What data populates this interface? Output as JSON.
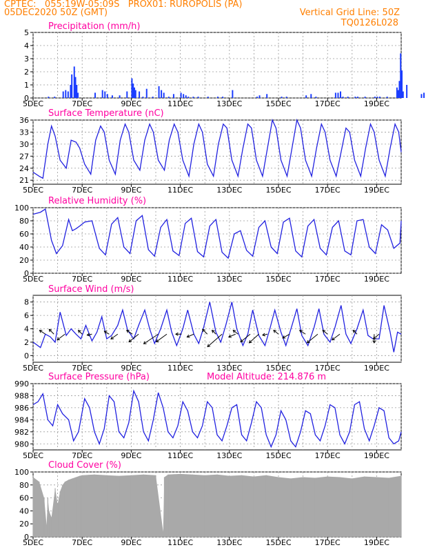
{
  "header": {
    "line1": "CPTEC:   055:19W-05:09S   PROX01: RUROPOLIS (PA)",
    "line2": "05DEC2020 50Z (GMT)",
    "vgrid": "Vertical Grid Line: 50Z",
    "code": "TQ0126L028"
  },
  "x_ticks": [
    "5DEC",
    "7DEC",
    "9DEC",
    "11DEC",
    "13DEC",
    "15DEC",
    "17DEC",
    "19DEC"
  ],
  "panels": {
    "precip": {
      "title": "Precipitation   (mm/h)"
    },
    "temp": {
      "title": "Surface Temperature  (nC)"
    },
    "rh": {
      "title": "Relative Humidity  (%)"
    },
    "wind": {
      "title": "Surface Wind   (m/s)"
    },
    "press": {
      "title": "Surface Pressure  (hPa)",
      "altitude": "Model Altitude: 214.876  m"
    },
    "cloud": {
      "title": "Cloud Cover  (%)"
    }
  },
  "colors": {
    "line": "#2020e0",
    "bar": "#1a3cff",
    "cloud": "#a9a9a9",
    "title": "#ff00a0",
    "header": "#ff7f00"
  },
  "chart_data": [
    {
      "type": "bar",
      "name": "precip",
      "title": "Precipitation (mm/h)",
      "ylim": [
        0,
        5
      ],
      "yticks": [
        0,
        1,
        2,
        3,
        4,
        5
      ],
      "x_days": [
        0.6,
        0.85,
        1.2,
        1.3,
        1.4,
        1.5,
        1.55,
        1.65,
        1.7,
        1.75,
        1.8,
        2.5,
        2.8,
        2.9,
        3.0,
        3.2,
        3.5,
        3.8,
        4.0,
        4.05,
        4.1,
        4.15,
        4.3,
        4.45,
        4.6,
        4.85,
        5.1,
        5.2,
        5.3,
        5.5,
        5.7,
        6.0,
        6.1,
        6.2,
        6.3,
        6.5,
        6.7,
        7.1,
        7.5,
        7.7,
        8.1,
        9.1,
        9.2,
        9.5,
        10.1,
        10.3,
        11.1,
        11.3,
        11.5,
        12.3,
        12.4,
        12.5,
        12.6,
        12.8,
        13.1,
        13.2,
        13.5,
        13.9,
        14.0,
        14.1,
        14.4,
        14.8,
        14.85,
        14.9,
        14.95,
        15.0,
        15.05,
        15.2,
        15.8,
        15.9
      ],
      "values": [
        0.1,
        0.1,
        0.5,
        0.6,
        0.5,
        1.0,
        1.8,
        2.4,
        1.6,
        1.0,
        0.4,
        0.4,
        0.6,
        0.5,
        0.3,
        0.2,
        0.2,
        0.5,
        1.5,
        1.1,
        0.8,
        0.6,
        0.5,
        0.1,
        0.7,
        0.1,
        0.9,
        0.6,
        0.4,
        0.1,
        0.3,
        0.4,
        0.3,
        0.2,
        0.1,
        0.1,
        0.1,
        0.1,
        0.1,
        0.1,
        0.6,
        0.1,
        0.2,
        0.3,
        0.1,
        0.1,
        0.2,
        0.3,
        0.1,
        0.4,
        0.4,
        0.5,
        0.1,
        0.1,
        0.1,
        0.1,
        0.1,
        0.1,
        0.1,
        0.1,
        0.1,
        0.8,
        0.6,
        1.3,
        3.4,
        2.1,
        0.5,
        1.0,
        0.3,
        0.4
      ]
    },
    {
      "type": "line",
      "name": "temp",
      "title": "Surface Temperature (nC)",
      "ylim": [
        20,
        36
      ],
      "yticks": [
        21,
        24,
        27,
        30,
        33,
        36
      ],
      "x_days": [
        0,
        0.25,
        0.4,
        0.6,
        0.75,
        0.9,
        1.1,
        1.35,
        1.55,
        1.75,
        1.9,
        2.1,
        2.35,
        2.55,
        2.75,
        2.9,
        3.1,
        3.35,
        3.55,
        3.75,
        3.9,
        4.1,
        4.35,
        4.55,
        4.75,
        4.9,
        5.1,
        5.35,
        5.55,
        5.75,
        5.9,
        6.1,
        6.35,
        6.55,
        6.75,
        6.9,
        7.1,
        7.35,
        7.55,
        7.75,
        7.9,
        8.1,
        8.35,
        8.55,
        8.75,
        8.9,
        9.1,
        9.35,
        9.55,
        9.75,
        9.9,
        10.1,
        10.35,
        10.55,
        10.75,
        10.9,
        11.1,
        11.35,
        11.55,
        11.75,
        11.9,
        12.1,
        12.35,
        12.55,
        12.75,
        12.9,
        13.1,
        13.35,
        13.55,
        13.75,
        13.9,
        14.1,
        14.35,
        14.55,
        14.75,
        14.9,
        15
      ],
      "values": [
        23,
        22,
        21.5,
        30,
        34.5,
        32,
        26,
        24,
        31,
        30.5,
        29,
        25,
        22.5,
        31,
        34.5,
        33,
        26,
        22.5,
        31,
        35,
        33,
        26,
        23.5,
        31,
        35,
        33,
        26,
        23.5,
        31,
        35,
        33,
        26,
        22,
        30,
        35,
        33,
        25,
        22,
        30,
        35,
        34,
        26,
        22,
        29,
        35,
        34,
        26,
        22,
        29,
        36,
        34,
        26,
        22,
        29,
        36,
        34,
        26,
        22,
        29,
        35,
        33,
        26,
        22,
        28,
        34,
        33,
        26,
        22,
        29,
        35,
        33,
        26,
        22,
        29,
        35,
        33,
        28
      ]
    },
    {
      "type": "line",
      "name": "rh",
      "title": "Relative Humidity (%)",
      "ylim": [
        0,
        100
      ],
      "yticks": [
        0,
        20,
        40,
        60,
        80,
        100
      ],
      "x_days": [
        0,
        0.3,
        0.5,
        0.75,
        0.95,
        1.2,
        1.45,
        1.6,
        1.75,
        1.9,
        2.1,
        2.4,
        2.7,
        2.95,
        3.2,
        3.45,
        3.7,
        3.95,
        4.2,
        4.45,
        4.7,
        4.95,
        5.2,
        5.45,
        5.7,
        5.95,
        6.2,
        6.45,
        6.7,
        6.95,
        7.2,
        7.45,
        7.7,
        7.95,
        8.2,
        8.45,
        8.7,
        8.95,
        9.2,
        9.45,
        9.7,
        9.95,
        10.2,
        10.45,
        10.7,
        10.95,
        11.2,
        11.45,
        11.7,
        11.95,
        12.2,
        12.45,
        12.7,
        12.95,
        13.2,
        13.45,
        13.7,
        13.95,
        14.2,
        14.45,
        14.7,
        14.95,
        15
      ],
      "values": [
        90,
        93,
        98,
        50,
        30,
        42,
        82,
        65,
        68,
        72,
        78,
        80,
        38,
        28,
        75,
        85,
        40,
        30,
        80,
        88,
        36,
        26,
        70,
        82,
        34,
        27,
        76,
        84,
        33,
        25,
        72,
        82,
        32,
        23,
        60,
        65,
        35,
        26,
        70,
        80,
        40,
        30,
        78,
        84,
        34,
        25,
        72,
        82,
        38,
        28,
        70,
        80,
        34,
        28,
        80,
        82,
        40,
        30,
        74,
        66,
        38,
        46,
        80
      ]
    },
    {
      "type": "line",
      "name": "wind",
      "title": "Surface Wind (m/s)",
      "ylim": [
        -1,
        9
      ],
      "yticks": [
        0,
        2,
        4,
        6,
        8
      ],
      "x_days": [
        0,
        0.3,
        0.5,
        0.7,
        0.9,
        1.1,
        1.35,
        1.55,
        1.75,
        1.95,
        2.15,
        2.4,
        2.6,
        2.8,
        3.0,
        3.2,
        3.45,
        3.65,
        3.85,
        4.1,
        4.3,
        4.55,
        4.75,
        4.95,
        5.2,
        5.45,
        5.65,
        5.85,
        6.1,
        6.3,
        6.55,
        6.75,
        6.95,
        7.2,
        7.45,
        7.65,
        7.85,
        8.1,
        8.3,
        8.55,
        8.75,
        8.95,
        9.2,
        9.45,
        9.65,
        9.85,
        10.1,
        10.3,
        10.55,
        10.75,
        10.95,
        11.2,
        11.45,
        11.65,
        11.85,
        12.1,
        12.3,
        12.55,
        12.75,
        12.95,
        13.2,
        13.45,
        13.65,
        13.85,
        14.1,
        14.3,
        14.55,
        14.7,
        14.85,
        15
      ],
      "values": [
        2,
        1.2,
        3.2,
        2.8,
        2.0,
        6.5,
        3.0,
        4.0,
        3.2,
        2.5,
        4.5,
        2.2,
        3.5,
        5.8,
        2.5,
        3.0,
        4.5,
        6.8,
        3.8,
        2.5,
        4.5,
        6.8,
        4.0,
        1.8,
        4.0,
        6.8,
        3.5,
        1.5,
        4.0,
        6.8,
        3.2,
        1.8,
        4.2,
        8.0,
        3.5,
        2.0,
        4.5,
        8.0,
        4.0,
        1.5,
        3.2,
        6.8,
        3.0,
        1.5,
        4.0,
        6.8,
        3.5,
        1.5,
        4.5,
        7.0,
        3.0,
        1.5,
        4.2,
        7.0,
        3.2,
        2.0,
        4.2,
        7.5,
        3.2,
        1.8,
        4.0,
        6.8,
        3.0,
        2.5,
        2.5,
        7.5,
        3.5,
        0.5,
        3.5,
        3.2
      ],
      "vectors": [
        {
          "day": 0.5,
          "u": -0.6,
          "v": 0.4
        },
        {
          "day": 0.85,
          "u": -0.5,
          "v": 0.5
        },
        {
          "day": 1.3,
          "u": -0.8,
          "v": -0.6
        },
        {
          "day": 2.0,
          "u": -0.4,
          "v": 0.4
        },
        {
          "day": 2.4,
          "u": -0.5,
          "v": -0.1
        },
        {
          "day": 3.1,
          "u": -0.5,
          "v": 0.3
        },
        {
          "day": 3.45,
          "u": -0.7,
          "v": -0.5
        },
        {
          "day": 4.05,
          "u": -0.6,
          "v": 0.4
        },
        {
          "day": 4.3,
          "u": -1.0,
          "v": -0.8
        },
        {
          "day": 5.1,
          "u": -1.5,
          "v": -1.0
        },
        {
          "day": 5.45,
          "u": -1.1,
          "v": -0.8
        },
        {
          "day": 6.05,
          "u": -0.6,
          "v": 0.0
        },
        {
          "day": 6.55,
          "u": -0.7,
          "v": -0.3
        },
        {
          "day": 7.1,
          "u": -0.5,
          "v": 0.5
        },
        {
          "day": 7.45,
          "u": -0.4,
          "v": 0.4
        },
        {
          "day": 7.7,
          "u": -1.5,
          "v": -1.3
        },
        {
          "day": 8.25,
          "u": -0.7,
          "v": -0.3
        },
        {
          "day": 8.35,
          "u": -0.5,
          "v": 0.4
        },
        {
          "day": 8.85,
          "u": -1.0,
          "v": -0.8
        },
        {
          "day": 9.2,
          "u": -1.0,
          "v": -0.9
        },
        {
          "day": 9.55,
          "u": -0.5,
          "v": -0.1
        },
        {
          "day": 10.0,
          "u": -0.5,
          "v": 0.4
        },
        {
          "day": 10.45,
          "u": -0.7,
          "v": -0.4
        },
        {
          "day": 11.1,
          "u": -0.6,
          "v": 0.4
        },
        {
          "day": 11.6,
          "u": -1.1,
          "v": -0.9
        },
        {
          "day": 12.0,
          "u": -0.5,
          "v": 0.4
        },
        {
          "day": 12.5,
          "u": -0.8,
          "v": -0.6
        },
        {
          "day": 13.2,
          "u": -0.4,
          "v": 0.4
        },
        {
          "day": 13.9,
          "u": 0.0,
          "v": -0.9
        },
        {
          "day": 14.1,
          "u": -0.6,
          "v": -0.5
        }
      ]
    },
    {
      "type": "line",
      "name": "press",
      "title": "Surface Pressure (hPa)",
      "ylim": [
        979,
        990
      ],
      "yticks": [
        980,
        982,
        984,
        986,
        988,
        990
      ],
      "x_days": [
        0,
        0.2,
        0.4,
        0.6,
        0.8,
        1.0,
        1.2,
        1.45,
        1.65,
        1.85,
        2.1,
        2.3,
        2.5,
        2.7,
        2.9,
        3.1,
        3.3,
        3.5,
        3.7,
        3.9,
        4.1,
        4.3,
        4.5,
        4.7,
        4.9,
        5.1,
        5.3,
        5.5,
        5.7,
        5.9,
        6.1,
        6.3,
        6.5,
        6.7,
        6.9,
        7.1,
        7.3,
        7.5,
        7.7,
        7.9,
        8.1,
        8.3,
        8.5,
        8.7,
        8.9,
        9.1,
        9.3,
        9.5,
        9.7,
        9.9,
        10.1,
        10.3,
        10.5,
        10.7,
        10.9,
        11.1,
        11.3,
        11.5,
        11.7,
        11.9,
        12.1,
        12.3,
        12.5,
        12.7,
        12.9,
        13.1,
        13.3,
        13.5,
        13.7,
        13.9,
        14.1,
        14.3,
        14.5,
        14.7,
        14.9,
        15
      ],
      "values": [
        986.5,
        987,
        988.3,
        984,
        983,
        986.5,
        985,
        984,
        980.5,
        982,
        987.5,
        986,
        982,
        980,
        982.5,
        988,
        987,
        982,
        981,
        983.5,
        988.8,
        987,
        982,
        980.5,
        984,
        988.5,
        986,
        982,
        981,
        983,
        987,
        985.5,
        982,
        981,
        983,
        987,
        986,
        981.5,
        980.5,
        983,
        986,
        986.5,
        981.5,
        980.5,
        983.5,
        987,
        986,
        981.5,
        979.5,
        981.5,
        985.5,
        984,
        980.5,
        979.5,
        982,
        985.5,
        985,
        981.5,
        980.5,
        983,
        986.5,
        986,
        981.5,
        980,
        982,
        986.5,
        987,
        982.5,
        980.5,
        983,
        986,
        985.5,
        981,
        980,
        980.5,
        982
      ]
    },
    {
      "type": "bar",
      "name": "cloud",
      "title": "Cloud Cover (%)",
      "ylim": [
        0,
        100
      ],
      "yticks": [
        0,
        20,
        40,
        60,
        80,
        100
      ],
      "x_days": [
        0,
        0.25,
        0.45,
        0.55,
        0.6,
        0.65,
        0.75,
        0.9,
        1.0,
        1.1,
        1.2,
        1.3,
        1.45,
        1.6,
        1.75,
        1.9,
        2.0,
        2.5,
        3.0,
        3.5,
        4.0,
        4.5,
        5.0,
        5.3,
        5.35,
        5.5,
        6.0,
        6.5,
        7.0,
        7.5,
        8.0,
        8.5,
        9.0,
        9.5,
        10.0,
        10.5,
        11.0,
        11.5,
        12.0,
        12.5,
        13.0,
        13.5,
        14.0,
        14.5,
        15.0
      ],
      "values": [
        92,
        85,
        60,
        18,
        60,
        40,
        30,
        75,
        50,
        70,
        80,
        85,
        88,
        90,
        92,
        94,
        95,
        96,
        95,
        94,
        95,
        96,
        95,
        8,
        92,
        96,
        97,
        96,
        95,
        96,
        94,
        95,
        93,
        95,
        92,
        90,
        92,
        91,
        93,
        92,
        90,
        93,
        92,
        91,
        94
      ]
    }
  ]
}
